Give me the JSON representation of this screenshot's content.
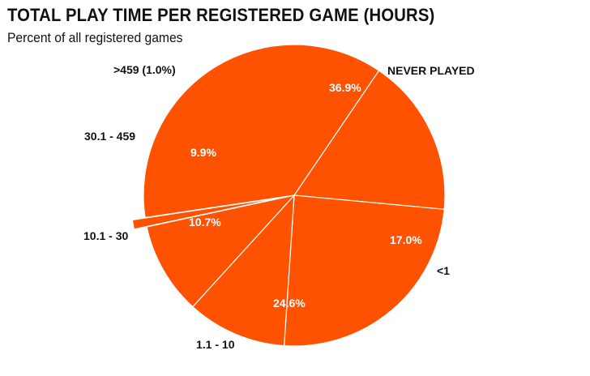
{
  "chart_data": {
    "type": "pie",
    "title": "TOTAL PLAY TIME PER REGISTERED GAME (HOURS)",
    "subtitle": "Percent of all registered games",
    "categories": [
      "NEVER PLAYED",
      "<1",
      "1.1 - 10",
      "10.1 - 30",
      "30.1 - 459",
      ">459 (1.0%)"
    ],
    "values": [
      36.9,
      17.0,
      24.6,
      10.7,
      9.9,
      1.0
    ],
    "value_labels": [
      "36.9%",
      "17.0%",
      "24.6%",
      "10.7%",
      "9.9%",
      ""
    ],
    "exploded_slice": ">459 (1.0%)",
    "legend": "none",
    "colors": {
      "slice": "#FF5200",
      "border": "#ffffff",
      "value_text": "#ffffff",
      "category_text": "#111111"
    }
  }
}
